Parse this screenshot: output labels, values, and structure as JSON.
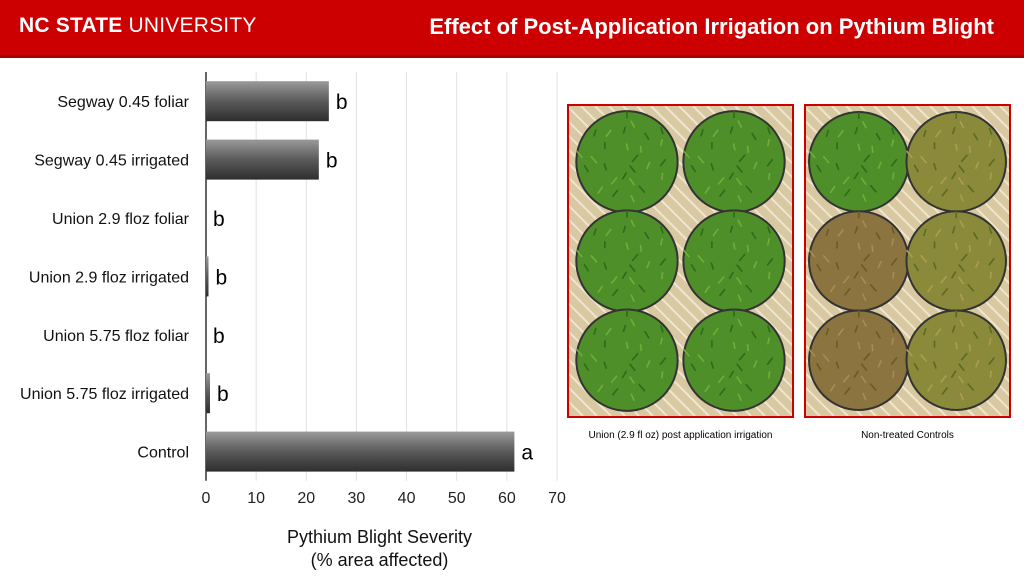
{
  "header": {
    "logo_bold": "NC STATE",
    "logo_light": "UNIVERSITY",
    "title": "Effect of Post-Application Irrigation on Pythium Blight"
  },
  "colors": {
    "brand_red": "#cc0000",
    "bar_dark": "#3c3c3c",
    "bar_light": "#9a9a9a"
  },
  "chart_data": {
    "type": "bar",
    "orientation": "horizontal",
    "categories": [
      "Segway 0.45 foliar",
      "Segway 0.45 irrigated",
      "Union 2.9 floz foliar",
      "Union 2.9 floz irrigated",
      "Union 5.75 floz foliar",
      "Union 5.75 floz irrigated",
      "Control"
    ],
    "values": [
      24.5,
      22.5,
      0,
      0.5,
      0,
      0.8,
      61.5
    ],
    "letters": [
      "b",
      "b",
      "b",
      "b",
      "b",
      "b",
      "a"
    ],
    "xlim": [
      0,
      70
    ],
    "xticks": [
      0,
      10,
      20,
      30,
      40,
      50,
      60,
      70
    ],
    "xlabel": [
      "Pythium Blight Severity",
      "(% area affected)"
    ],
    "grid": "vertical"
  },
  "photos": [
    {
      "caption": "Union (2.9 fl oz) post application irrigation",
      "pots": [
        "healthy",
        "healthy",
        "healthy",
        "healthy",
        "healthy",
        "healthy"
      ]
    },
    {
      "caption": "Non-treated Controls",
      "pots": [
        "healthy",
        "mixed",
        "blighted",
        "mixed",
        "blighted",
        "mixed"
      ]
    }
  ]
}
